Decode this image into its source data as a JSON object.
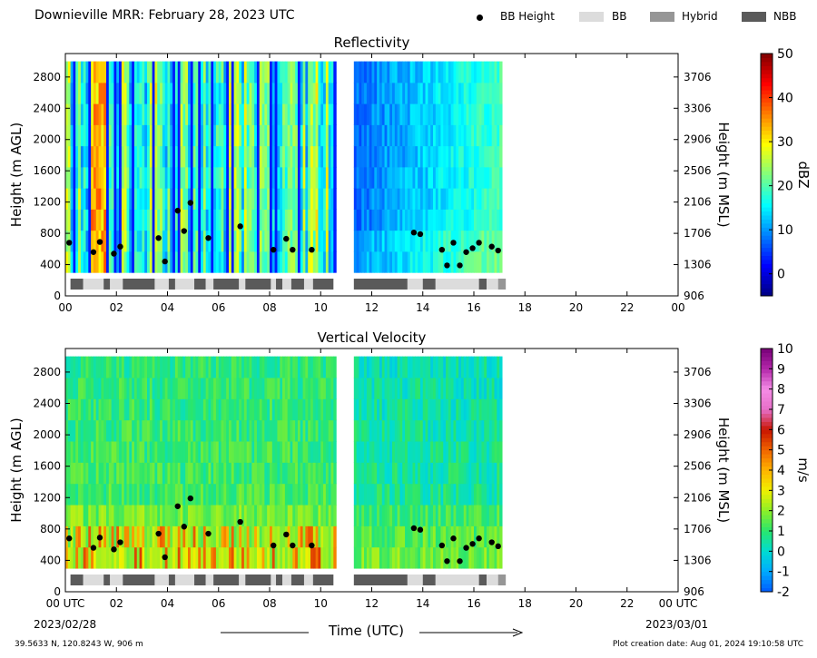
{
  "header": {
    "title": "Downieville MRR:  February 28, 2023 UTC",
    "legend": [
      {
        "label": "BB Height",
        "kind": "dot",
        "color": "#000000"
      },
      {
        "label": "BB",
        "kind": "patch",
        "color": "#dcdcdc"
      },
      {
        "label": "Hybrid",
        "kind": "patch",
        "color": "#969696"
      },
      {
        "label": "NBB",
        "kind": "patch",
        "color": "#5a5a5a"
      }
    ]
  },
  "footer": {
    "location": "39.5633 N, 120.8243 W, 906 m",
    "creation": "Plot creation date: Aug 01, 2024 19:10:58 UTC",
    "xlabel": "Time (UTC)",
    "start_date": "2023/02/28",
    "end_date": "2023/03/01",
    "start_tick": "00 UTC",
    "end_tick": "00 UTC"
  },
  "chart_data": [
    {
      "type": "heatmap",
      "title": "Reflectivity",
      "ylabel": "Height (m AGL)",
      "y2label": "Height (m MSL)",
      "colorbar_label": "dBZ",
      "colorbar_ticks": [
        "0",
        "10",
        "20",
        "30",
        "40",
        "50"
      ],
      "colorbar_range": [
        -5,
        50
      ],
      "xlim": [
        0,
        24
      ],
      "ylim": [
        0,
        3100
      ],
      "xticks": [
        "00",
        "02",
        "04",
        "06",
        "08",
        "10",
        "12",
        "14",
        "16",
        "18",
        "20",
        "22",
        "00"
      ],
      "yticks": [
        "0",
        "400",
        "800",
        "1200",
        "1600",
        "2000",
        "2400",
        "2800"
      ],
      "y2ticks": [
        "906",
        "1306",
        "1706",
        "2106",
        "2506",
        "2906",
        "3306",
        "3706"
      ],
      "data_coverage_hours": [
        [
          0,
          10.5
        ],
        [
          11.3,
          17
        ]
      ],
      "data_height_range_m": [
        300,
        3000
      ],
      "bb_heights": [
        {
          "t": 0.15,
          "h": 680
        },
        {
          "t": 1.1,
          "h": 560
        },
        {
          "t": 1.35,
          "h": 690
        },
        {
          "t": 1.9,
          "h": 540
        },
        {
          "t": 2.15,
          "h": 630
        },
        {
          "t": 3.65,
          "h": 740
        },
        {
          "t": 3.9,
          "h": 440
        },
        {
          "t": 4.4,
          "h": 1090
        },
        {
          "t": 4.65,
          "h": 830
        },
        {
          "t": 4.9,
          "h": 1190
        },
        {
          "t": 5.6,
          "h": 740
        },
        {
          "t": 6.85,
          "h": 890
        },
        {
          "t": 8.15,
          "h": 590
        },
        {
          "t": 8.65,
          "h": 730
        },
        {
          "t": 8.9,
          "h": 590
        },
        {
          "t": 9.65,
          "h": 590
        },
        {
          "t": 13.65,
          "h": 810
        },
        {
          "t": 13.9,
          "h": 790
        },
        {
          "t": 14.75,
          "h": 590
        },
        {
          "t": 14.95,
          "h": 390
        },
        {
          "t": 15.2,
          "h": 680
        },
        {
          "t": 15.45,
          "h": 390
        },
        {
          "t": 15.7,
          "h": 560
        },
        {
          "t": 15.95,
          "h": 610
        },
        {
          "t": 16.2,
          "h": 680
        },
        {
          "t": 16.7,
          "h": 630
        },
        {
          "t": 16.95,
          "h": 580
        }
      ],
      "bb_classification": [
        {
          "start": 0.2,
          "end": 0.7,
          "type": "NBB"
        },
        {
          "start": 0.7,
          "end": 1.5,
          "type": "BB"
        },
        {
          "start": 1.5,
          "end": 1.75,
          "type": "NBB"
        },
        {
          "start": 1.75,
          "end": 2.25,
          "type": "BB"
        },
        {
          "start": 2.25,
          "end": 3.5,
          "type": "NBB"
        },
        {
          "start": 3.5,
          "end": 4.05,
          "type": "BB"
        },
        {
          "start": 4.05,
          "end": 4.3,
          "type": "NBB"
        },
        {
          "start": 4.3,
          "end": 5.05,
          "type": "BB"
        },
        {
          "start": 5.05,
          "end": 5.5,
          "type": "NBB"
        },
        {
          "start": 5.5,
          "end": 5.8,
          "type": "BB"
        },
        {
          "start": 5.8,
          "end": 6.8,
          "type": "NBB"
        },
        {
          "start": 6.8,
          "end": 7.05,
          "type": "BB"
        },
        {
          "start": 7.05,
          "end": 8.05,
          "type": "NBB"
        },
        {
          "start": 8.05,
          "end": 8.25,
          "type": "BB"
        },
        {
          "start": 8.25,
          "end": 8.5,
          "type": "NBB"
        },
        {
          "start": 8.5,
          "end": 8.85,
          "type": "BB"
        },
        {
          "start": 8.85,
          "end": 9.35,
          "type": "NBB"
        },
        {
          "start": 9.35,
          "end": 9.7,
          "type": "BB"
        },
        {
          "start": 9.7,
          "end": 10.5,
          "type": "NBB"
        },
        {
          "start": 11.3,
          "end": 13.4,
          "type": "NBB"
        },
        {
          "start": 13.4,
          "end": 14.0,
          "type": "BB"
        },
        {
          "start": 14.0,
          "end": 14.5,
          "type": "NBB"
        },
        {
          "start": 14.5,
          "end": 16.2,
          "type": "BB"
        },
        {
          "start": 16.2,
          "end": 16.5,
          "type": "NBB"
        },
        {
          "start": 16.5,
          "end": 16.95,
          "type": "BB"
        },
        {
          "start": 16.95,
          "end": 17.25,
          "type": "Hybrid"
        }
      ]
    },
    {
      "type": "heatmap",
      "title": "Vertical Velocity",
      "ylabel": "Height (m AGL)",
      "y2label": "Height (m MSL)",
      "colorbar_label": "m/s",
      "colorbar_ticks": [
        "-2",
        "-1",
        "0",
        "1",
        "2",
        "3",
        "4",
        "5",
        "6",
        "7",
        "8",
        "9",
        "10"
      ],
      "colorbar_range": [
        -2,
        10
      ],
      "xlim": [
        0,
        24
      ],
      "ylim": [
        0,
        3100
      ],
      "xticks": [
        "00 UTC",
        "02",
        "04",
        "06",
        "08",
        "10",
        "12",
        "14",
        "16",
        "18",
        "20",
        "22",
        "00 UTC"
      ],
      "yticks": [
        "0",
        "400",
        "800",
        "1200",
        "1600",
        "2000",
        "2400",
        "2800"
      ],
      "y2ticks": [
        "906",
        "1306",
        "1706",
        "2106",
        "2506",
        "2906",
        "3306",
        "3706"
      ],
      "data_coverage_hours": [
        [
          0,
          10.5
        ],
        [
          11.3,
          17
        ]
      ],
      "data_height_range_m": [
        300,
        3000
      ]
    }
  ]
}
